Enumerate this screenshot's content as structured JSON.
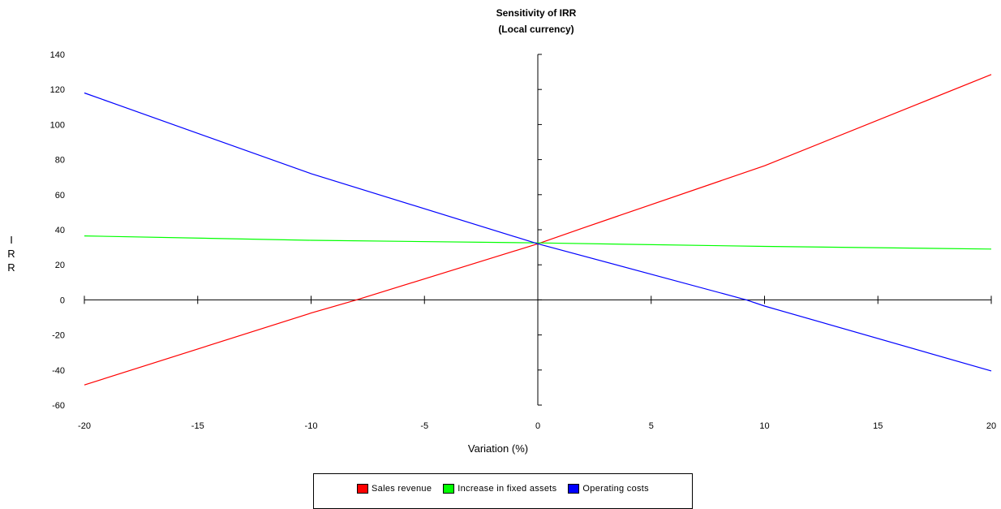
{
  "chart_data": {
    "type": "line",
    "title": "Sensitivity of IRR",
    "subtitle": "(Local currency)",
    "xlabel": "Variation (%)",
    "ylabel": "IRR",
    "xlim": [
      -20,
      20
    ],
    "ylim": [
      -60,
      140
    ],
    "x_ticks": [
      -20,
      -15,
      -10,
      -5,
      0,
      5,
      10,
      15,
      20
    ],
    "y_ticks": [
      140,
      120,
      100,
      80,
      60,
      40,
      20,
      0,
      -20,
      -40,
      -60
    ],
    "grid": false,
    "legend_position": "bottom",
    "series": [
      {
        "name": "Sales revenue",
        "color": "#ff0000",
        "x": [
          -20,
          -10,
          -8,
          -2,
          0,
          2,
          10,
          20
        ],
        "y": [
          -48.5,
          -7.5,
          0,
          24,
          32,
          41,
          76.5,
          128.5
        ]
      },
      {
        "name": "Increase in fixed assets",
        "color": "#00ff00",
        "x": [
          -20,
          -10,
          0,
          10,
          20
        ],
        "y": [
          36.5,
          34,
          32.5,
          30.5,
          29
        ]
      },
      {
        "name": "Operating costs",
        "color": "#0000ff",
        "x": [
          -20,
          -10,
          0,
          9.2,
          10,
          20
        ],
        "y": [
          118,
          72,
          32,
          0,
          -3.5,
          -40.5
        ]
      }
    ]
  }
}
